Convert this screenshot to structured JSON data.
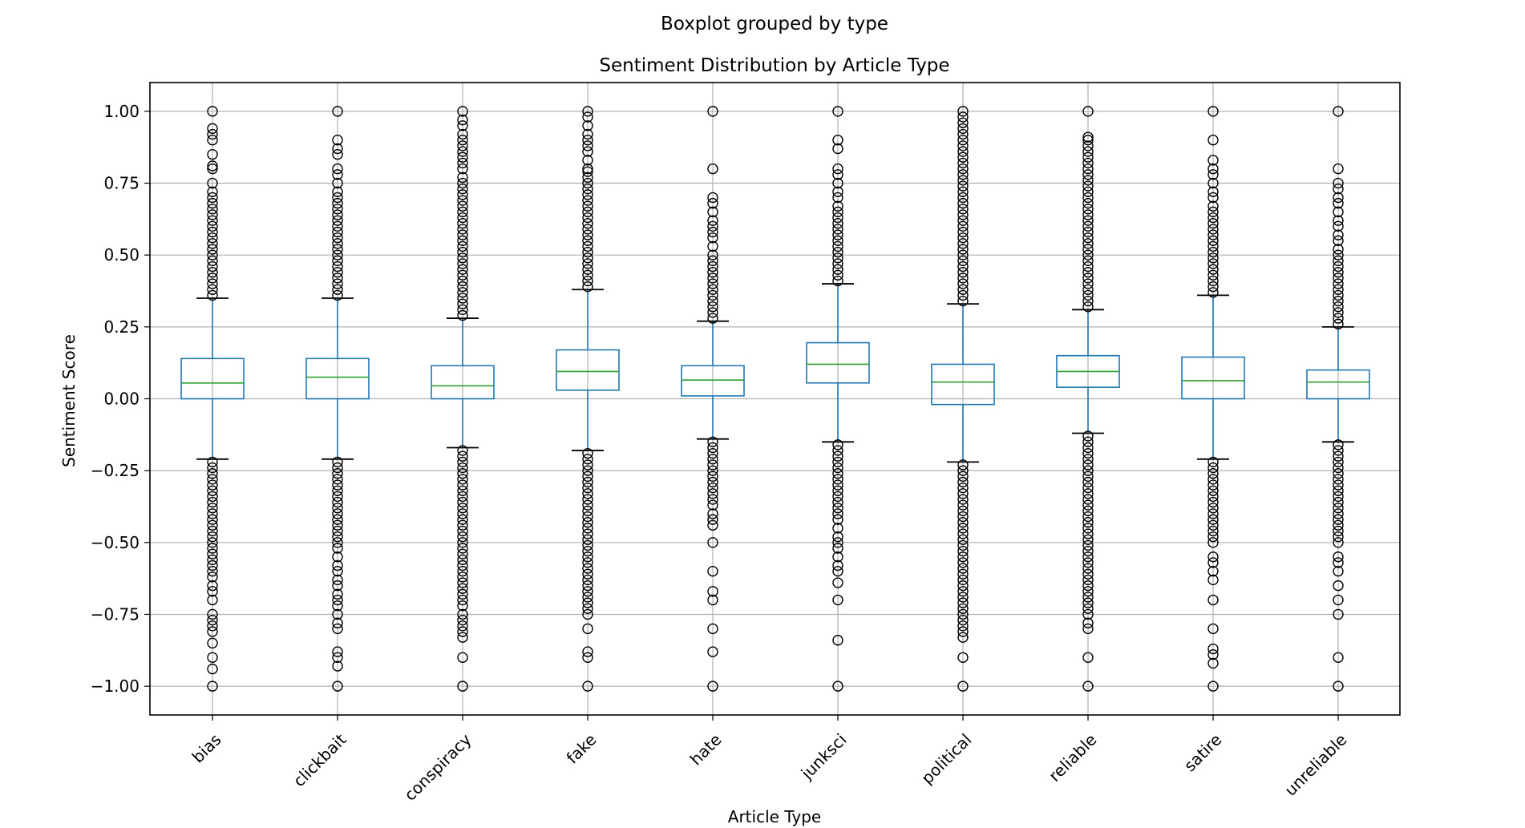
{
  "chart_data": {
    "type": "boxplot",
    "suptitle": "Boxplot grouped by type",
    "title": "Sentiment Distribution by Article Type",
    "xlabel": "Article Type",
    "ylabel": "Sentiment Score",
    "ylim": [
      -1.1,
      1.1
    ],
    "yticks": [
      -1.0,
      -0.75,
      -0.5,
      -0.25,
      0.0,
      0.25,
      0.5,
      0.75,
      1.0
    ],
    "ytick_labels": [
      "−1.00",
      "−0.75",
      "−0.50",
      "−0.25",
      "0.00",
      "0.25",
      "0.50",
      "0.75",
      "1.00"
    ],
    "grid": true,
    "colors": {
      "box": "#1f77b4",
      "median": "#2ca02c",
      "grid": "#b0b0b0",
      "outlier": "#000000"
    },
    "categories": [
      "bias",
      "clickbait",
      "conspiracy",
      "fake",
      "hate",
      "junksci",
      "political",
      "reliable",
      "satire",
      "unreliable"
    ],
    "boxes": [
      {
        "q1": 0.0,
        "median": 0.055,
        "q3": 0.14,
        "whislo": -0.21,
        "whishi": 0.35,
        "fliers_high": [
          0.36,
          0.38,
          0.4,
          0.42,
          0.44,
          0.46,
          0.48,
          0.5,
          0.52,
          0.54,
          0.56,
          0.58,
          0.6,
          0.62,
          0.64,
          0.66,
          0.68,
          0.7,
          0.72,
          0.75,
          0.8,
          0.81,
          0.85,
          0.9,
          0.92,
          0.94,
          1.0
        ],
        "fliers_low": [
          -0.22,
          -0.24,
          -0.26,
          -0.28,
          -0.3,
          -0.32,
          -0.34,
          -0.36,
          -0.38,
          -0.4,
          -0.42,
          -0.44,
          -0.46,
          -0.48,
          -0.5,
          -0.52,
          -0.54,
          -0.56,
          -0.58,
          -0.6,
          -0.62,
          -0.65,
          -0.67,
          -0.7,
          -0.75,
          -0.77,
          -0.79,
          -0.81,
          -0.85,
          -0.9,
          -0.94,
          -1.0
        ]
      },
      {
        "q1": 0.0,
        "median": 0.075,
        "q3": 0.14,
        "whislo": -0.21,
        "whishi": 0.35,
        "fliers_high": [
          0.36,
          0.38,
          0.4,
          0.42,
          0.44,
          0.46,
          0.48,
          0.5,
          0.52,
          0.54,
          0.56,
          0.58,
          0.6,
          0.62,
          0.64,
          0.66,
          0.68,
          0.7,
          0.72,
          0.75,
          0.78,
          0.8,
          0.85,
          0.87,
          0.9,
          1.0
        ],
        "fliers_low": [
          -0.22,
          -0.24,
          -0.26,
          -0.28,
          -0.3,
          -0.32,
          -0.34,
          -0.36,
          -0.38,
          -0.4,
          -0.42,
          -0.44,
          -0.46,
          -0.48,
          -0.5,
          -0.52,
          -0.55,
          -0.58,
          -0.6,
          -0.63,
          -0.65,
          -0.68,
          -0.7,
          -0.72,
          -0.75,
          -0.78,
          -0.8,
          -0.88,
          -0.9,
          -0.93,
          -1.0
        ]
      },
      {
        "q1": 0.0,
        "median": 0.045,
        "q3": 0.115,
        "whislo": -0.17,
        "whishi": 0.28,
        "fliers_high": [
          0.29,
          0.31,
          0.33,
          0.35,
          0.37,
          0.39,
          0.41,
          0.43,
          0.45,
          0.47,
          0.49,
          0.51,
          0.53,
          0.55,
          0.57,
          0.59,
          0.61,
          0.63,
          0.65,
          0.67,
          0.69,
          0.71,
          0.73,
          0.75,
          0.77,
          0.8,
          0.82,
          0.84,
          0.86,
          0.88,
          0.9,
          0.92,
          0.95,
          0.97,
          1.0
        ],
        "fliers_low": [
          -0.18,
          -0.2,
          -0.22,
          -0.24,
          -0.26,
          -0.28,
          -0.3,
          -0.32,
          -0.34,
          -0.36,
          -0.38,
          -0.4,
          -0.42,
          -0.44,
          -0.46,
          -0.48,
          -0.5,
          -0.52,
          -0.54,
          -0.56,
          -0.58,
          -0.6,
          -0.62,
          -0.64,
          -0.66,
          -0.68,
          -0.7,
          -0.72,
          -0.75,
          -0.77,
          -0.79,
          -0.81,
          -0.83,
          -0.9,
          -1.0
        ]
      },
      {
        "q1": 0.03,
        "median": 0.095,
        "q3": 0.17,
        "whislo": -0.18,
        "whishi": 0.38,
        "fliers_high": [
          0.39,
          0.41,
          0.43,
          0.45,
          0.47,
          0.49,
          0.51,
          0.53,
          0.55,
          0.57,
          0.59,
          0.61,
          0.63,
          0.65,
          0.67,
          0.69,
          0.71,
          0.73,
          0.75,
          0.77,
          0.79,
          0.8,
          0.83,
          0.86,
          0.88,
          0.9,
          0.92,
          0.95,
          0.98,
          1.0
        ],
        "fliers_low": [
          -0.19,
          -0.21,
          -0.23,
          -0.25,
          -0.27,
          -0.29,
          -0.31,
          -0.33,
          -0.35,
          -0.37,
          -0.39,
          -0.41,
          -0.43,
          -0.45,
          -0.47,
          -0.49,
          -0.51,
          -0.53,
          -0.55,
          -0.57,
          -0.59,
          -0.61,
          -0.63,
          -0.65,
          -0.67,
          -0.69,
          -0.71,
          -0.73,
          -0.75,
          -0.8,
          -0.88,
          -0.9,
          -1.0
        ]
      },
      {
        "q1": 0.01,
        "median": 0.065,
        "q3": 0.115,
        "whislo": -0.14,
        "whishi": 0.27,
        "fliers_high": [
          0.28,
          0.3,
          0.32,
          0.34,
          0.36,
          0.38,
          0.4,
          0.42,
          0.44,
          0.46,
          0.48,
          0.5,
          0.53,
          0.56,
          0.58,
          0.6,
          0.62,
          0.65,
          0.68,
          0.7,
          0.8,
          1.0
        ],
        "fliers_low": [
          -0.15,
          -0.17,
          -0.19,
          -0.21,
          -0.23,
          -0.25,
          -0.27,
          -0.29,
          -0.31,
          -0.33,
          -0.35,
          -0.37,
          -0.4,
          -0.42,
          -0.44,
          -0.5,
          -0.6,
          -0.67,
          -0.7,
          -0.8,
          -0.88,
          -1.0
        ]
      },
      {
        "q1": 0.055,
        "median": 0.12,
        "q3": 0.195,
        "whislo": -0.15,
        "whishi": 0.4,
        "fliers_high": [
          0.41,
          0.43,
          0.45,
          0.47,
          0.49,
          0.51,
          0.53,
          0.55,
          0.57,
          0.59,
          0.61,
          0.63,
          0.65,
          0.67,
          0.7,
          0.72,
          0.75,
          0.78,
          0.8,
          0.87,
          0.9,
          1.0
        ],
        "fliers_low": [
          -0.16,
          -0.18,
          -0.2,
          -0.22,
          -0.24,
          -0.26,
          -0.28,
          -0.3,
          -0.32,
          -0.34,
          -0.36,
          -0.38,
          -0.4,
          -0.42,
          -0.45,
          -0.48,
          -0.5,
          -0.52,
          -0.55,
          -0.58,
          -0.6,
          -0.64,
          -0.7,
          -0.84,
          -1.0
        ]
      },
      {
        "q1": -0.02,
        "median": 0.058,
        "q3": 0.12,
        "whislo": -0.22,
        "whishi": 0.33,
        "fliers_high": [
          0.34,
          0.36,
          0.38,
          0.4,
          0.42,
          0.44,
          0.46,
          0.48,
          0.5,
          0.52,
          0.54,
          0.56,
          0.58,
          0.6,
          0.62,
          0.64,
          0.66,
          0.68,
          0.7,
          0.72,
          0.74,
          0.76,
          0.78,
          0.8,
          0.82,
          0.84,
          0.86,
          0.88,
          0.9,
          0.92,
          0.94,
          0.96,
          0.98,
          1.0
        ],
        "fliers_low": [
          -0.23,
          -0.25,
          -0.27,
          -0.29,
          -0.31,
          -0.33,
          -0.35,
          -0.37,
          -0.39,
          -0.41,
          -0.43,
          -0.45,
          -0.47,
          -0.49,
          -0.51,
          -0.53,
          -0.55,
          -0.57,
          -0.59,
          -0.61,
          -0.63,
          -0.65,
          -0.67,
          -0.69,
          -0.71,
          -0.73,
          -0.75,
          -0.77,
          -0.79,
          -0.81,
          -0.83,
          -0.9,
          -1.0
        ]
      },
      {
        "q1": 0.04,
        "median": 0.095,
        "q3": 0.15,
        "whislo": -0.12,
        "whishi": 0.31,
        "fliers_high": [
          0.32,
          0.34,
          0.36,
          0.38,
          0.4,
          0.42,
          0.44,
          0.46,
          0.48,
          0.5,
          0.52,
          0.54,
          0.56,
          0.58,
          0.6,
          0.62,
          0.64,
          0.66,
          0.68,
          0.7,
          0.72,
          0.74,
          0.76,
          0.78,
          0.8,
          0.82,
          0.84,
          0.86,
          0.88,
          0.9,
          0.91,
          1.0
        ],
        "fliers_low": [
          -0.13,
          -0.15,
          -0.17,
          -0.19,
          -0.21,
          -0.23,
          -0.25,
          -0.27,
          -0.29,
          -0.31,
          -0.33,
          -0.35,
          -0.37,
          -0.39,
          -0.41,
          -0.43,
          -0.45,
          -0.47,
          -0.49,
          -0.51,
          -0.53,
          -0.55,
          -0.57,
          -0.59,
          -0.61,
          -0.63,
          -0.65,
          -0.67,
          -0.69,
          -0.71,
          -0.73,
          -0.75,
          -0.78,
          -0.8,
          -0.9,
          -1.0
        ]
      },
      {
        "q1": 0.0,
        "median": 0.063,
        "q3": 0.145,
        "whislo": -0.21,
        "whishi": 0.36,
        "fliers_high": [
          0.37,
          0.39,
          0.41,
          0.43,
          0.45,
          0.47,
          0.49,
          0.51,
          0.53,
          0.55,
          0.57,
          0.59,
          0.61,
          0.63,
          0.65,
          0.67,
          0.7,
          0.72,
          0.75,
          0.78,
          0.8,
          0.83,
          0.9,
          1.0
        ],
        "fliers_low": [
          -0.22,
          -0.24,
          -0.26,
          -0.28,
          -0.3,
          -0.32,
          -0.34,
          -0.36,
          -0.38,
          -0.4,
          -0.42,
          -0.44,
          -0.46,
          -0.48,
          -0.5,
          -0.55,
          -0.57,
          -0.6,
          -0.63,
          -0.7,
          -0.8,
          -0.87,
          -0.89,
          -0.92,
          -1.0
        ]
      },
      {
        "q1": 0.0,
        "median": 0.058,
        "q3": 0.1,
        "whislo": -0.15,
        "whishi": 0.25,
        "fliers_high": [
          0.26,
          0.28,
          0.3,
          0.32,
          0.34,
          0.36,
          0.38,
          0.4,
          0.42,
          0.44,
          0.46,
          0.48,
          0.5,
          0.52,
          0.55,
          0.57,
          0.6,
          0.62,
          0.65,
          0.68,
          0.7,
          0.73,
          0.75,
          0.8,
          1.0
        ],
        "fliers_low": [
          -0.16,
          -0.18,
          -0.2,
          -0.22,
          -0.24,
          -0.26,
          -0.28,
          -0.3,
          -0.32,
          -0.34,
          -0.36,
          -0.38,
          -0.4,
          -0.42,
          -0.44,
          -0.46,
          -0.48,
          -0.5,
          -0.55,
          -0.57,
          -0.6,
          -0.65,
          -0.7,
          -0.75,
          -0.9,
          -1.0
        ]
      }
    ]
  }
}
